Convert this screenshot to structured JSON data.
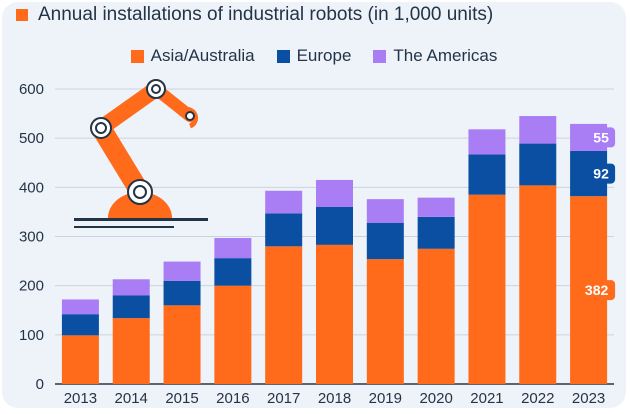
{
  "title": "Annual installations of industrial robots (in 1,000 units)",
  "colors": {
    "asia": "#ff6b1a",
    "europe": "#0b4fa3",
    "americas": "#a97ef5",
    "title_mark": "#ff6b1a",
    "robot": "#ff6b1a"
  },
  "legend": [
    {
      "label": "Asia/Australia",
      "color": "#ff6b1a"
    },
    {
      "label": "Europe",
      "color": "#0b4fa3"
    },
    {
      "label": "The Americas",
      "color": "#a97ef5"
    }
  ],
  "icon": "industrial-robot-arm-icon",
  "chart_data": {
    "type": "bar",
    "stacked": true,
    "title": "Annual installations of industrial robots (in 1,000 units)",
    "categories": [
      "2013",
      "2014",
      "2015",
      "2016",
      "2017",
      "2018",
      "2019",
      "2020",
      "2021",
      "2022",
      "2023"
    ],
    "series": [
      {
        "name": "Asia/Australia",
        "values": [
          99,
          134,
          160,
          200,
          280,
          283,
          254,
          275,
          385,
          404,
          382
        ]
      },
      {
        "name": "Europe",
        "values": [
          43,
          46,
          50,
          56,
          67,
          77,
          74,
          65,
          82,
          85,
          92
        ]
      },
      {
        "name": "The Americas",
        "values": [
          30,
          33,
          39,
          41,
          46,
          55,
          48,
          39,
          51,
          56,
          55
        ]
      }
    ],
    "ylim": [
      0,
      600
    ],
    "yticks": [
      0,
      100,
      200,
      300,
      400,
      500,
      600
    ],
    "grid": true,
    "legend_position": "top-center",
    "annotations": [
      {
        "category": "2023",
        "series": "The Americas",
        "text": "55"
      },
      {
        "category": "2023",
        "series": "Europe",
        "text": "92"
      },
      {
        "category": "2023",
        "series": "Asia/Australia",
        "text": "382"
      }
    ]
  }
}
